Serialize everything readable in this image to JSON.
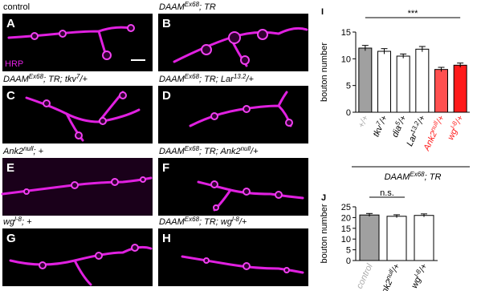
{
  "panels": [
    {
      "letter": "A",
      "label": [
        {
          "t": "control"
        }
      ],
      "stain": "HRP"
    },
    {
      "letter": "B",
      "label": [
        {
          "t": "DAAM"
        },
        {
          "sup": "Ex68"
        },
        {
          "t": "; TR"
        }
      ]
    },
    {
      "letter": "C",
      "label": [
        {
          "t": "DAAM"
        },
        {
          "sup": "Ex68"
        },
        {
          "t": "; TR; tkv"
        },
        {
          "sup": "7"
        },
        {
          "t": "/+"
        }
      ]
    },
    {
      "letter": "D",
      "label": [
        {
          "t": "DAAM"
        },
        {
          "sup": "Ex68"
        },
        {
          "t": "; TR; Lar"
        },
        {
          "sup": "13.2"
        },
        {
          "t": "/+"
        }
      ]
    },
    {
      "letter": "E",
      "label": [
        {
          "t": "Ank2"
        },
        {
          "sup": "null"
        },
        {
          "t": "; +"
        }
      ]
    },
    {
      "letter": "F",
      "label": [
        {
          "t": "DAAM"
        },
        {
          "sup": "Ex68"
        },
        {
          "t": "; TR; Ank2"
        },
        {
          "sup": "null"
        },
        {
          "t": "/+"
        }
      ]
    },
    {
      "letter": "G",
      "label": [
        {
          "t": "wg"
        },
        {
          "sup": "l-8"
        },
        {
          "t": "; +"
        }
      ]
    },
    {
      "letter": "H",
      "label": [
        {
          "t": "DAAM"
        },
        {
          "sup": "Ex68"
        },
        {
          "t": "; TR; wg"
        },
        {
          "sup": "l-8"
        },
        {
          "t": "/+"
        }
      ]
    }
  ],
  "chart_data": [
    {
      "type": "bar",
      "panel": "I",
      "ylabel": "bouton number",
      "categories": [
        [
          {
            "t": "+/+"
          }
        ],
        [
          {
            "t": "tkv"
          },
          {
            "sup": "7"
          },
          {
            "t": "/+"
          }
        ],
        [
          {
            "t": "dia"
          },
          {
            "sup": "5"
          },
          {
            "t": "/+"
          }
        ],
        [
          {
            "t": "Lar"
          },
          {
            "sup": "13.2"
          },
          {
            "t": "/+"
          }
        ],
        [
          {
            "t": "Ank2"
          },
          {
            "sup": "null"
          },
          {
            "t": "/+"
          }
        ],
        [
          {
            "t": "wg"
          },
          {
            "sup": "l-8"
          },
          {
            "t": "/+"
          }
        ]
      ],
      "category_colors": [
        "#aaaaaa",
        "#000000",
        "#000000",
        "#000000",
        "#ff2020",
        "#ff2020"
      ],
      "values": [
        12.0,
        11.4,
        10.5,
        11.8,
        8.0,
        8.8
      ],
      "errors": [
        0.5,
        0.5,
        0.4,
        0.5,
        0.4,
        0.4
      ],
      "colors": [
        "#a0a0a0",
        "#ffffff",
        "#ffffff",
        "#ffffff",
        "#ff5050",
        "#ff1a1a"
      ],
      "ylim": [
        0,
        15
      ],
      "yticks": [
        0,
        5,
        10,
        15
      ],
      "significance": "***",
      "group_label": [
        {
          "t": "DAAM"
        },
        {
          "sup": "Ex68"
        },
        {
          "t": "; TR"
        }
      ]
    },
    {
      "type": "bar",
      "panel": "J",
      "ylabel": "bouton number",
      "categories": [
        [
          {
            "t": "control"
          }
        ],
        [
          {
            "t": "Ank2"
          },
          {
            "sup": "null"
          },
          {
            "t": "/+"
          }
        ],
        [
          {
            "t": "wg"
          },
          {
            "sup": "l-8"
          },
          {
            "t": "/+"
          }
        ]
      ],
      "category_colors": [
        "#aaaaaa",
        "#000000",
        "#000000"
      ],
      "values": [
        21.2,
        20.6,
        21.0
      ],
      "errors": [
        0.7,
        0.7,
        0.7
      ],
      "colors": [
        "#a0a0a0",
        "#ffffff",
        "#ffffff"
      ],
      "ylim": [
        0,
        25
      ],
      "yticks": [
        0,
        5,
        10,
        15,
        20,
        25
      ],
      "significance": "n.s."
    }
  ]
}
